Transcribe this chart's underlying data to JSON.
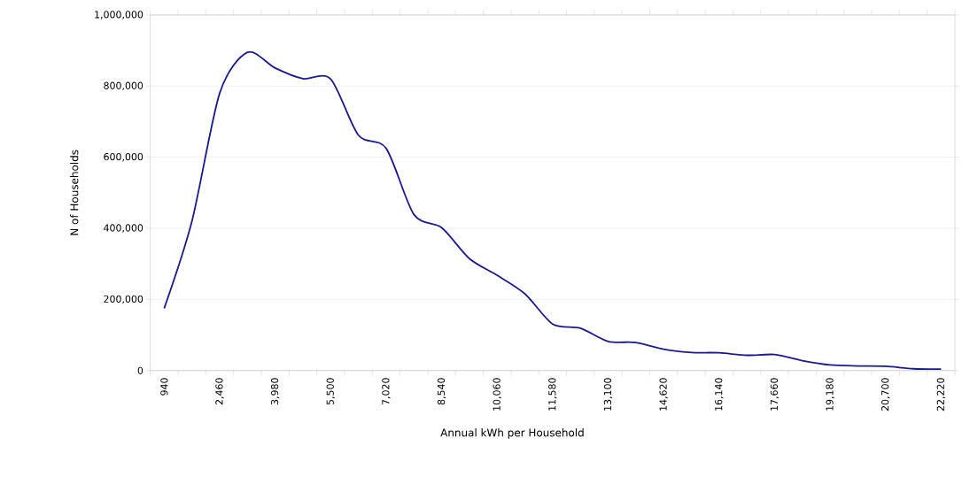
{
  "chart_data": {
    "type": "line",
    "xlabel": "Annual kWh per Household",
    "ylabel": "N of Households",
    "categories": [
      "940",
      null,
      "2,460",
      null,
      "3,980",
      null,
      "5,500",
      null,
      "7,020",
      null,
      "8,540",
      null,
      "10,060",
      null,
      "11,580",
      null,
      "13,100",
      null,
      "14,620",
      null,
      "16,140",
      null,
      "17,660",
      null,
      "19,180",
      null,
      "20,700",
      null,
      "22,220"
    ],
    "series": [
      {
        "color": "#1a1a8c",
        "values": [
          175000,
          420000,
          780000,
          895000,
          851000,
          821000,
          820000,
          662000,
          625000,
          439000,
          402000,
          315000,
          268000,
          216000,
          131000,
          119000,
          82000,
          79000,
          60000,
          51000,
          50000,
          43000,
          45000,
          28000,
          16000,
          13000,
          12000,
          5000,
          4000
        ]
      }
    ],
    "ylim": [
      0,
      1000000
    ],
    "yticks": [
      {
        "value": 0,
        "label": "0"
      },
      {
        "value": 200000,
        "label": "200,000"
      },
      {
        "value": 400000,
        "label": "400,000"
      },
      {
        "value": 600000,
        "label": "600,000"
      },
      {
        "value": 800000,
        "label": "800,000"
      },
      {
        "value": 1000000,
        "label": "1,000,000"
      }
    ],
    "grid": "y",
    "legend": false,
    "marker": "none",
    "line_style": "solid"
  }
}
